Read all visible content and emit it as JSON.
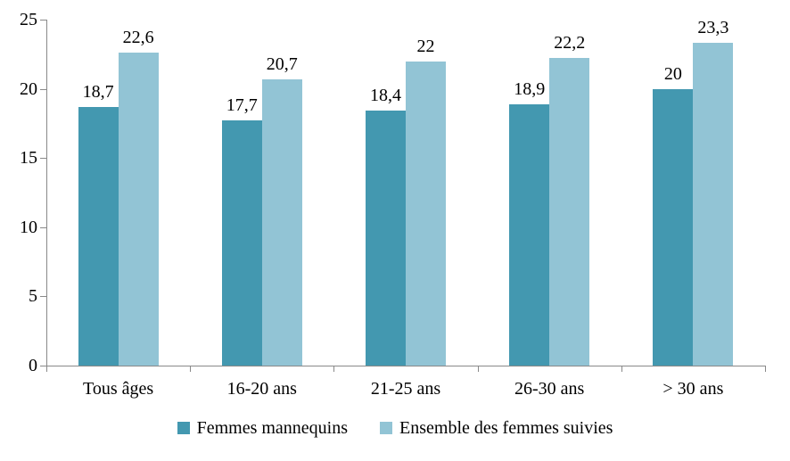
{
  "chart_data": {
    "type": "bar",
    "title": "",
    "xlabel": "",
    "ylabel": "",
    "categories": [
      "Tous âges",
      "16-20 ans",
      "21-25 ans",
      "26-30 ans",
      "> 30 ans"
    ],
    "series": [
      {
        "name": "Femmes mannequins",
        "color": "#4398b0",
        "values": [
          18.7,
          17.7,
          18.4,
          18.9,
          20
        ],
        "labels": [
          "18,7",
          "17,7",
          "18,4",
          "18,9",
          "20"
        ]
      },
      {
        "name": "Ensemble des femmes suivies",
        "color": "#92c4d5",
        "values": [
          22.6,
          20.7,
          22,
          22.2,
          23.3
        ],
        "labels": [
          "22,6",
          "20,7",
          "22",
          "22,2",
          "23,3"
        ]
      }
    ],
    "y_axis": {
      "min": 0,
      "max": 25,
      "step": 5,
      "tick_labels": [
        "0",
        "5",
        "10",
        "15",
        "20",
        "25"
      ]
    },
    "grid": false,
    "legend_position": "bottom",
    "axis_color": "#898989",
    "text_color": "#000000",
    "background_color": "#ffffff"
  }
}
